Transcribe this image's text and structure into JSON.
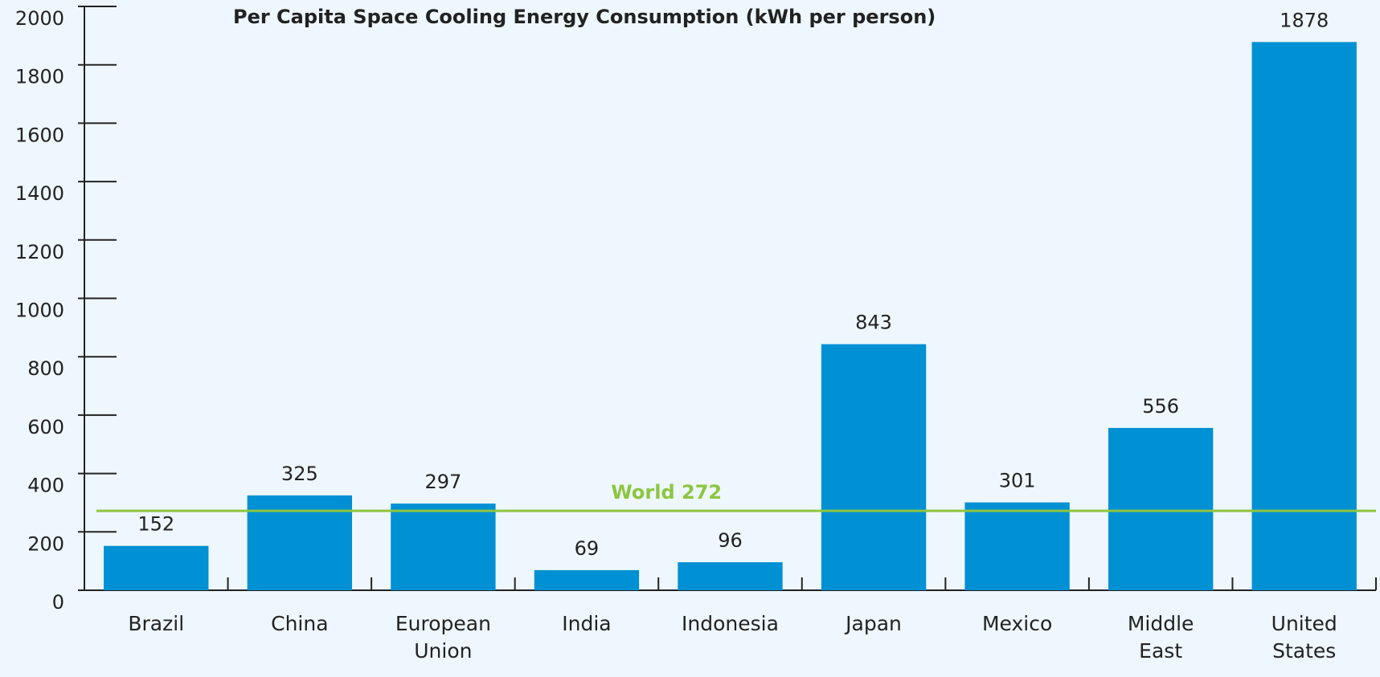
{
  "chart_data": {
    "type": "bar",
    "title": "Per Capita Space Cooling Energy Consumption (kWh per person)",
    "categories": [
      "Brazil",
      "China",
      "European Union",
      "India",
      "Indonesia",
      "Japan",
      "Mexico",
      "Middle East",
      "United States"
    ],
    "values": [
      152,
      325,
      297,
      69,
      96,
      843,
      301,
      556,
      1878
    ],
    "color": "#0090d4",
    "ylim": [
      0,
      2000
    ],
    "yticks": [
      0,
      200,
      400,
      600,
      800,
      1000,
      1200,
      1400,
      1600,
      1800,
      2000
    ],
    "reference_line": {
      "label": "World",
      "value": 272,
      "color": "#8dc63f"
    }
  }
}
